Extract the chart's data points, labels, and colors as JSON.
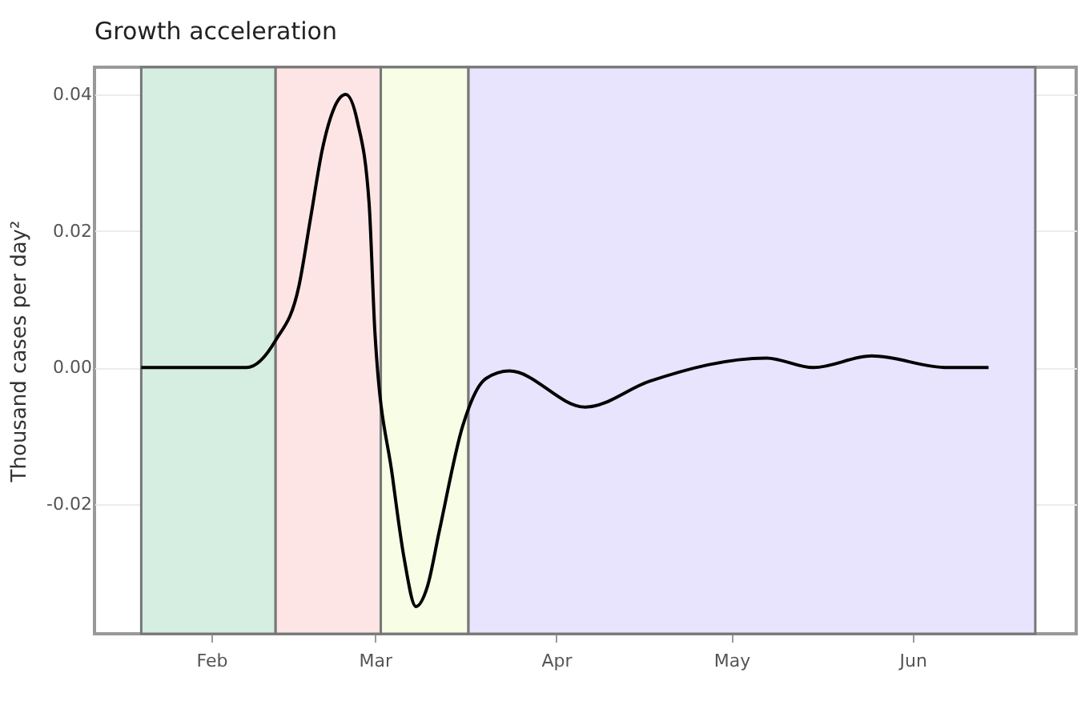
{
  "chart_data": {
    "type": "line",
    "title": "Growth acceleration",
    "ylabel": "Thousand cases per day²",
    "x": [
      "--01-20",
      "--02-01",
      "--02-07",
      "--02-12",
      "--02-16",
      "--02-18",
      "--02-20",
      "--02-22",
      "--02-24",
      "--02-26",
      "--02-28",
      "--03-01",
      "--03-04",
      "--03-06",
      "--03-08",
      "--03-10",
      "--03-12",
      "--03-16",
      "--03-20",
      "--03-24",
      "--04-06",
      "--04-17",
      "--05-07",
      "--05-15",
      "--05-25",
      "--06-07",
      "--06-14"
    ],
    "series": [
      {
        "color": "#000000",
        "values": [
          0,
          0,
          0,
          0.004,
          0.012,
          0.022,
          0.032,
          0.038,
          0.04,
          0.036,
          0.024,
          0.005,
          -0.016,
          -0.028,
          -0.035,
          -0.032,
          -0.024,
          -0.0086,
          -0.0016,
          -0.0005,
          -0.0058,
          -0.002,
          0.0014,
          0,
          0.0017,
          0,
          0
        ]
      }
    ],
    "xlim": [
      "--01-12",
      "--06-29"
    ],
    "xticks": [
      {
        "value": "--02-01",
        "label": "Feb"
      },
      {
        "value": "--03-01",
        "label": "Mar"
      },
      {
        "value": "--04-01",
        "label": "Apr"
      },
      {
        "value": "--05-01",
        "label": "May"
      },
      {
        "value": "--06-01",
        "label": "Jun"
      }
    ],
    "ylim": [
      -0.039,
      0.044
    ],
    "yticks": [
      {
        "value": -0.02,
        "label": "-0.02"
      },
      {
        "value": 0,
        "label": "0.00"
      },
      {
        "value": 0.02,
        "label": "0.02"
      },
      {
        "value": 0.04,
        "label": "0.04"
      }
    ],
    "bands": [
      {
        "axis": "x",
        "from": "--01-20",
        "to": "--02-12",
        "color": "#d5eee1"
      },
      {
        "axis": "x",
        "from": "--02-12",
        "to": "--03-02",
        "color": "#fde5e5"
      },
      {
        "axis": "x",
        "from": "--03-02",
        "to": "--03-17",
        "color": "#f7fee5"
      },
      {
        "axis": "x",
        "from": "--03-17",
        "to": "--06-22",
        "color": "#e8e4fd"
      }
    ],
    "grid": true,
    "marker": "none",
    "line_style": "solid"
  }
}
